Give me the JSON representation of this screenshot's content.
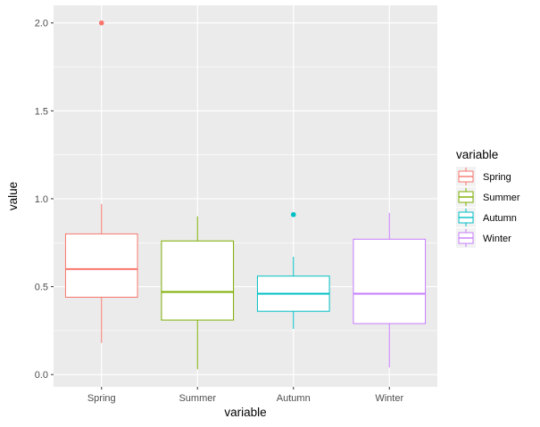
{
  "chart_data": {
    "type": "boxplot",
    "xlabel": "variable",
    "ylabel": "value",
    "categories": [
      "Spring",
      "Summer",
      "Autumn",
      "Winter"
    ],
    "ylim": [
      -0.07,
      2.1
    ],
    "yticks": [
      0.0,
      0.5,
      1.0,
      1.5,
      2.0
    ],
    "ytick_labels": [
      "0.0",
      "0.5",
      "1.0",
      "1.5",
      "2.0"
    ],
    "grid": true,
    "legend": {
      "title": "variable",
      "position": "right",
      "entries": [
        "Spring",
        "Summer",
        "Autumn",
        "Winter"
      ]
    },
    "series": [
      {
        "name": "Spring",
        "color": "#F8766D",
        "min": 0.18,
        "q1": 0.44,
        "median": 0.6,
        "q3": 0.8,
        "max": 0.97,
        "outliers": [
          2.0
        ]
      },
      {
        "name": "Summer",
        "color": "#7CAE00",
        "min": 0.03,
        "q1": 0.31,
        "median": 0.47,
        "q3": 0.76,
        "max": 0.9,
        "outliers": []
      },
      {
        "name": "Autumn",
        "color": "#00BFC4",
        "min": 0.26,
        "q1": 0.36,
        "median": 0.46,
        "q3": 0.56,
        "max": 0.67,
        "outliers": [
          0.91
        ]
      },
      {
        "name": "Winter",
        "color": "#C77CFF",
        "min": 0.04,
        "q1": 0.29,
        "median": 0.46,
        "q3": 0.77,
        "max": 0.92,
        "outliers": []
      }
    ]
  }
}
